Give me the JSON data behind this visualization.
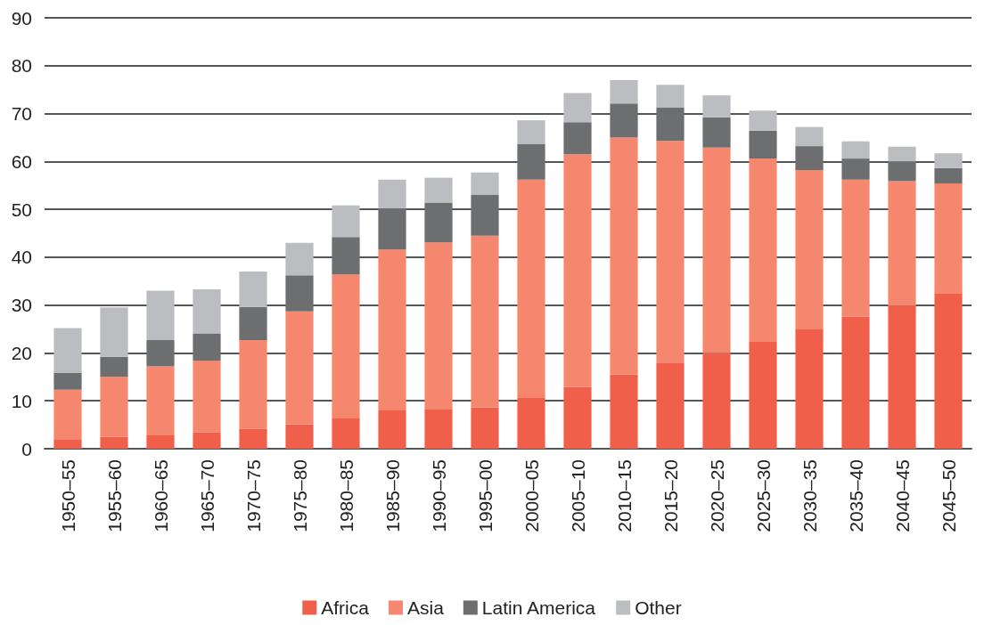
{
  "chart_data": {
    "type": "bar",
    "stacked": true,
    "categories": [
      "1950–55",
      "1955–60",
      "1960–65",
      "1965–70",
      "1970–75",
      "1975–80",
      "1980–85",
      "1985–90",
      "1990–95",
      "1995–00",
      "2000–05",
      "2005–10",
      "2010–15",
      "2015–20",
      "2020–25",
      "2025–30",
      "2030–35",
      "2035–40",
      "2040–45",
      "2045–50"
    ],
    "series": [
      {
        "name": "Africa",
        "color": "#f05f4a",
        "values": [
          2,
          2.5,
          2.8,
          3.4,
          4.2,
          5.1,
          6.3,
          8,
          8.3,
          8.6,
          10.6,
          12.9,
          15.5,
          18,
          20,
          22.3,
          24.9,
          27.6,
          29.9,
          32.5
        ]
      },
      {
        "name": "Asia",
        "color": "#f5876e",
        "values": [
          10.3,
          12.5,
          14.4,
          15,
          18.5,
          23.6,
          30.1,
          33.6,
          34.8,
          35.9,
          45.6,
          48.6,
          49.5,
          46.3,
          42.9,
          38.3,
          33.3,
          28.6,
          26,
          22.9
        ]
      },
      {
        "name": "Latin America",
        "color": "#6d6e70",
        "values": [
          3.5,
          4.2,
          5.5,
          5.7,
          6.9,
          7.5,
          7.8,
          8.6,
          8.3,
          8.6,
          7.5,
          6.7,
          7.1,
          7,
          6.3,
          5.8,
          5,
          4.4,
          4.1,
          3.2
        ]
      },
      {
        "name": "Other",
        "color": "#bcbdc0",
        "values": [
          9.4,
          10.3,
          10.3,
          9.2,
          7.4,
          6.8,
          6.6,
          6,
          5.2,
          4.6,
          4.9,
          6.1,
          4.9,
          4.7,
          4.6,
          4.2,
          4,
          3.6,
          3.1,
          3.1
        ]
      }
    ],
    "ylim": [
      0,
      90
    ],
    "yticks": [
      0,
      10,
      20,
      30,
      40,
      50,
      60,
      70,
      80,
      90
    ],
    "grid": "y",
    "legend": "bottom"
  }
}
